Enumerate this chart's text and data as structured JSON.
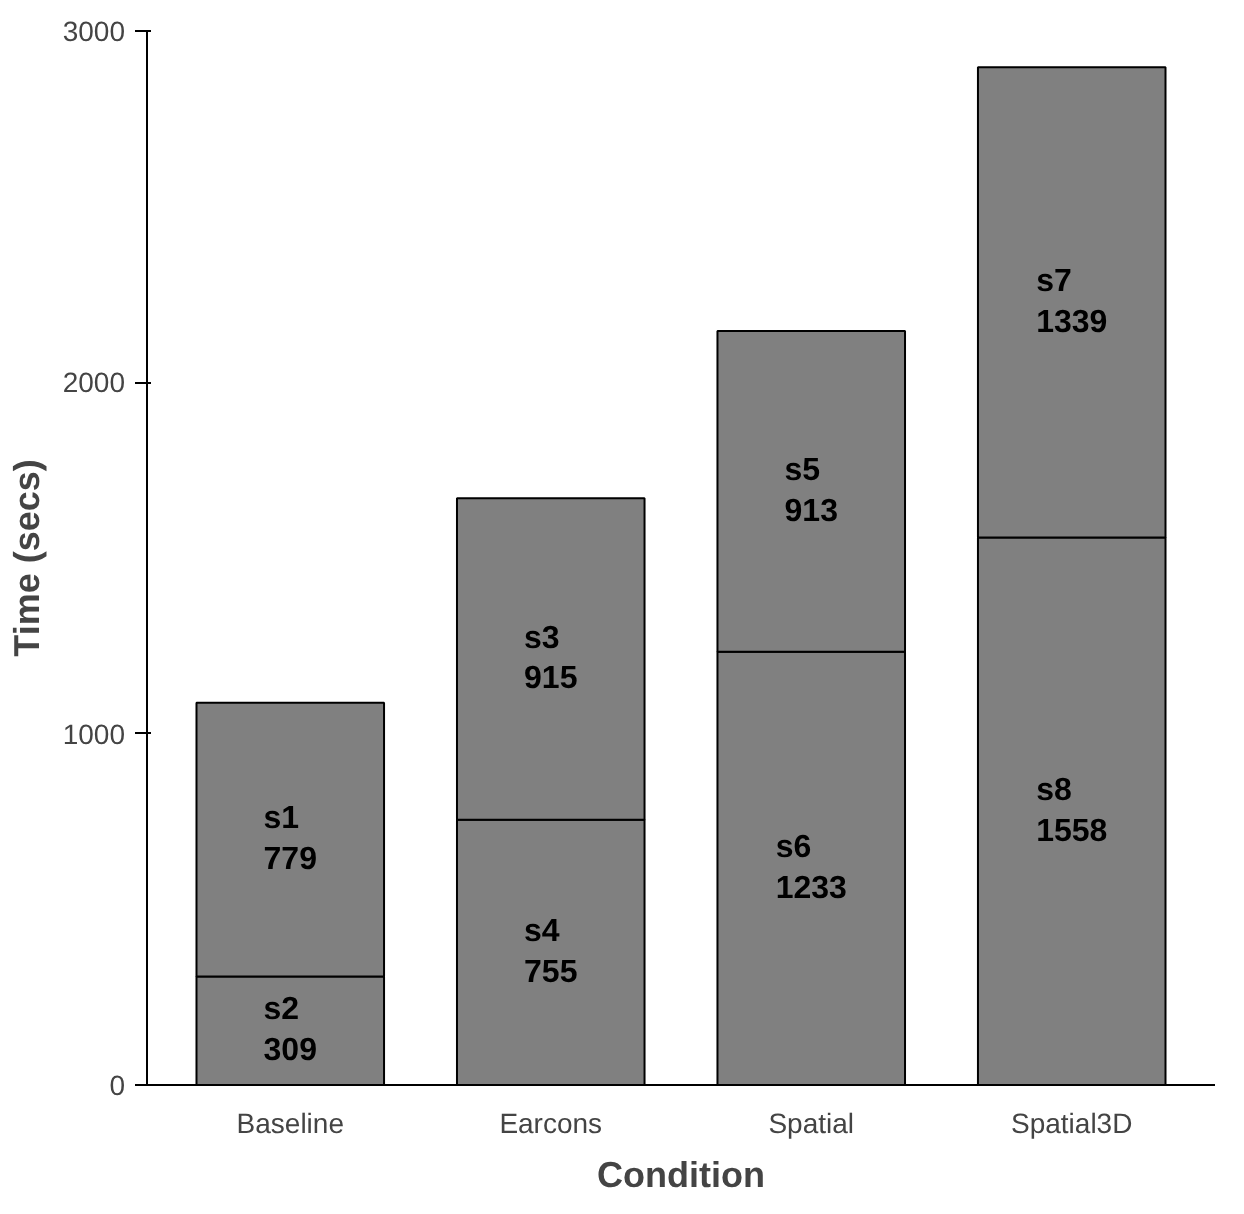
{
  "chart_data": {
    "type": "bar",
    "stacked": true,
    "xlabel": "Condition",
    "ylabel": "Time (secs)",
    "categories": [
      "Baseline",
      "Earcons",
      "Spatial",
      "Spatial3D"
    ],
    "series": [
      {
        "color": "#808080",
        "values": [
          309,
          755,
          1233,
          1558
        ],
        "value_labels": [
          "s2\n309",
          "s4\n755",
          "s6\n1233",
          "s8\n1558"
        ]
      },
      {
        "color": "#808080",
        "values": [
          779,
          915,
          913,
          1339
        ],
        "value_labels": [
          "s1\n779",
          "s3\n915",
          "s5\n913",
          "s7\n1339"
        ]
      }
    ],
    "ylim": [
      0,
      3000
    ],
    "yticks": [
      0,
      1000,
      2000,
      3000
    ]
  }
}
